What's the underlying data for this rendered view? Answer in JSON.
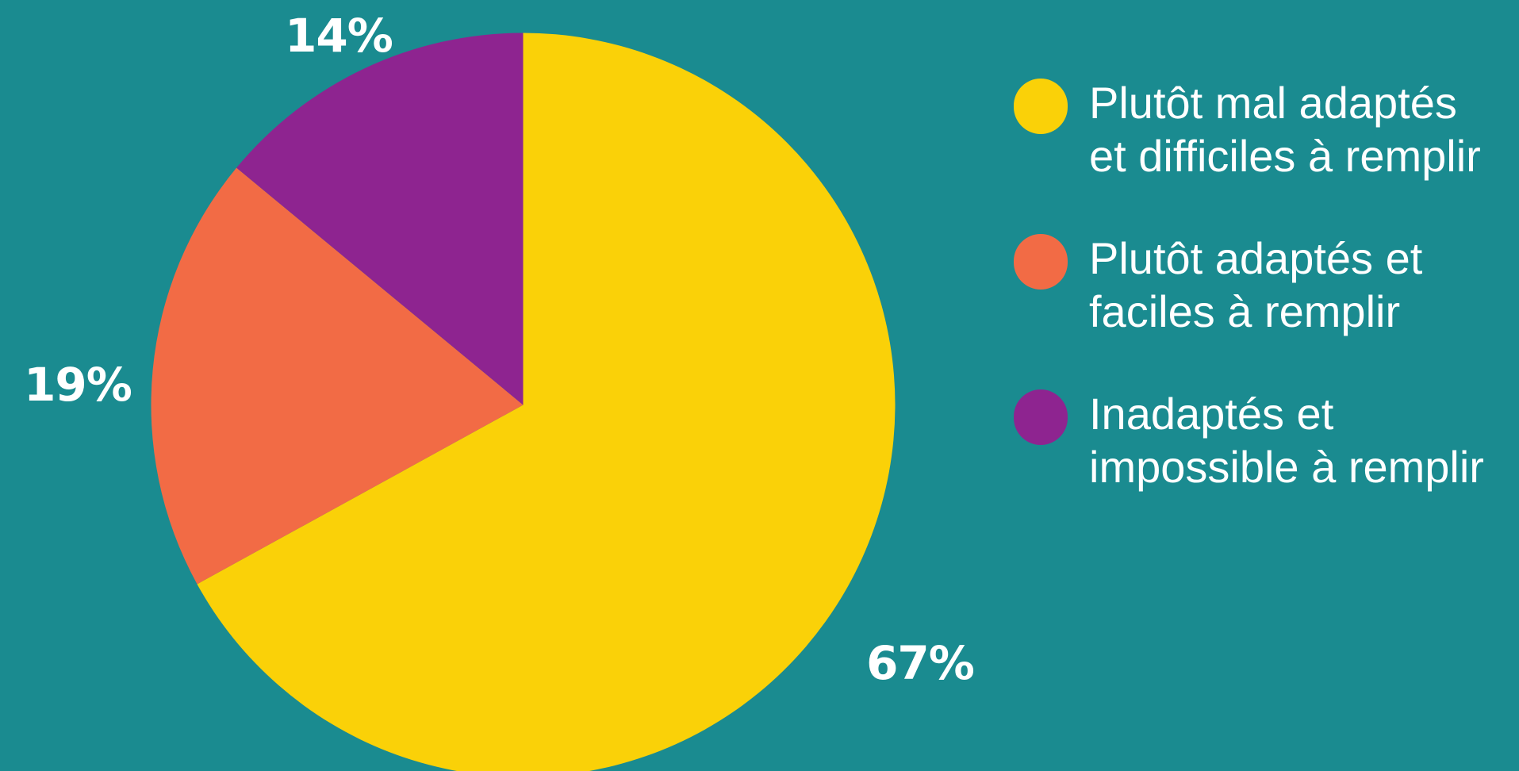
{
  "chart_data": {
    "type": "pie",
    "categories": [
      "Plutôt mal adaptés\net difficiles à remplir",
      "Plutôt adaptés et\nfaciles à remplir",
      "Inadaptés et\nimpossible à remplir"
    ],
    "values": [
      67,
      19,
      14
    ],
    "value_labels": [
      "67%",
      "19%",
      "14%"
    ],
    "colors": [
      "#fad108",
      "#f26b45",
      "#8e2490"
    ]
  }
}
